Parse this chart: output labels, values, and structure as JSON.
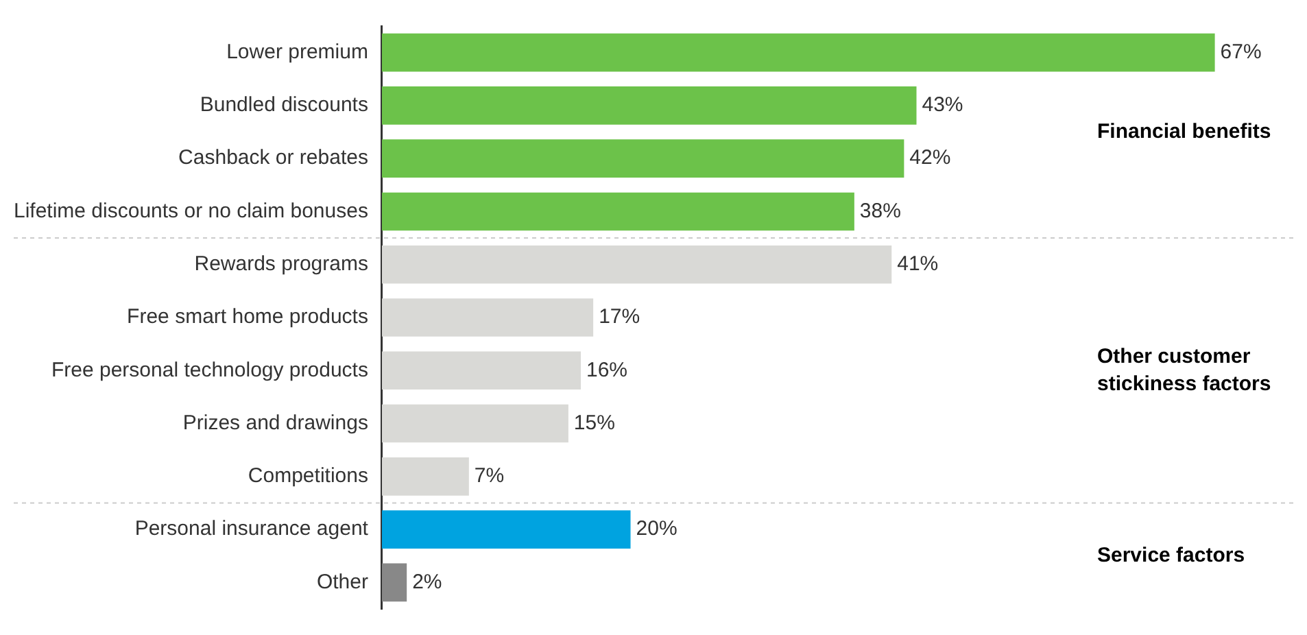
{
  "chart_data": {
    "type": "bar",
    "orientation": "horizontal",
    "categories": [
      "Lower premium",
      "Bundled discounts",
      "Cashback or rebates",
      "Lifetime discounts or no claim bonuses",
      "Rewards programs",
      "Free smart home products",
      "Free personal technology products",
      "Prizes and drawings",
      "Competitions",
      "Personal insurance agent",
      "Other"
    ],
    "values": [
      67,
      43,
      42,
      38,
      41,
      17,
      16,
      15,
      7,
      20,
      2
    ],
    "colors": [
      "#6cc24a",
      "#6cc24a",
      "#6cc24a",
      "#6cc24a",
      "#d9d9d6",
      "#d9d9d6",
      "#d9d9d6",
      "#d9d9d6",
      "#d9d9d6",
      "#00a3e0",
      "#888888"
    ],
    "value_labels": [
      "67%",
      "43%",
      "42%",
      "38%",
      "41%",
      "17%",
      "16%",
      "15%",
      "7%",
      "20%",
      "2%"
    ],
    "annotations": [
      "Financial benefits",
      "Other customer\nstickiness factors",
      "Service factors"
    ],
    "grid": false,
    "legend": false
  }
}
